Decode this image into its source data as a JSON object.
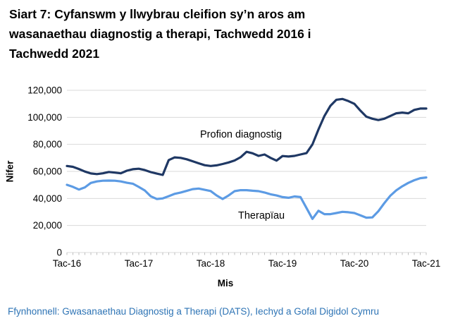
{
  "title_lines": [
    "Siart 7: Cyfanswm y llwybrau cleifion sy’n aros am",
    "wasanaethau diagnostig a therapi, Tachwedd 2016 i",
    "Tachwedd 2021"
  ],
  "source_note": "Ffynhonnell: Gwasanaethau Diagnostig a Therapi (DATS), Iechyd a Gofal Digidol Cymru",
  "chart_data": {
    "type": "line",
    "title": "Siart 7: Cyfanswm y llwybrau cleifion sy’n aros am wasanaethau diagnostig a therapi, Tachwedd 2016 i Tachwedd 2021",
    "xlabel": "Mis",
    "ylabel": "Nifer",
    "ylim": [
      0,
      120000
    ],
    "y_tick_step": 20000,
    "y_tick_labels": [
      "0",
      "20,000",
      "40,000",
      "60,000",
      "80,000",
      "100,000",
      "120,000"
    ],
    "x_tick_labels": [
      "Tac-16",
      "Tac-17",
      "Tac-18",
      "Tac-19",
      "Tac-20",
      "Tac-21"
    ],
    "x_minor_ticks": "monthly",
    "grid": "horizontal",
    "legend": "inline-labels",
    "colors": {
      "gridline": "#d9d9d9",
      "tick": "#bfbfbf",
      "axis_text": "#000000",
      "source_text": "#2e74b5"
    },
    "series": [
      {
        "name": "Profion diagnostig",
        "color": "#1f3864",
        "values": [
          64000,
          63400,
          61800,
          59900,
          58500,
          58000,
          58600,
          59600,
          59100,
          58600,
          60500,
          61600,
          62000,
          61000,
          59500,
          58400,
          57400,
          68400,
          70400,
          70000,
          69000,
          67500,
          66000,
          64600,
          64000,
          64500,
          65500,
          66600,
          68100,
          70500,
          74500,
          73400,
          71500,
          72500,
          70000,
          68000,
          71400,
          71000,
          71500,
          72500,
          73500,
          80000,
          91000,
          101000,
          108500,
          113000,
          113600,
          112000,
          110000,
          105000,
          100500,
          99000,
          98000,
          99000,
          101000,
          103000,
          103500,
          103000,
          105500,
          106500,
          106500
        ]
      },
      {
        "name": "Therapïau",
        "color": "#5c9be4",
        "values": [
          50100,
          48600,
          46600,
          48200,
          51500,
          52600,
          53100,
          53200,
          53100,
          52600,
          51600,
          50900,
          48500,
          45900,
          41600,
          39600,
          40000,
          41700,
          43400,
          44400,
          45600,
          46900,
          47300,
          46400,
          45500,
          42200,
          39600,
          42200,
          45400,
          46100,
          46100,
          45700,
          45400,
          44400,
          43100,
          42200,
          41000,
          40500,
          41500,
          41000,
          33000,
          24900,
          30900,
          28400,
          28400,
          29200,
          30100,
          29800,
          29200,
          27500,
          25800,
          26000,
          30500,
          36500,
          42000,
          46000,
          49000,
          51500,
          53500,
          55000,
          55500
        ]
      }
    ]
  }
}
